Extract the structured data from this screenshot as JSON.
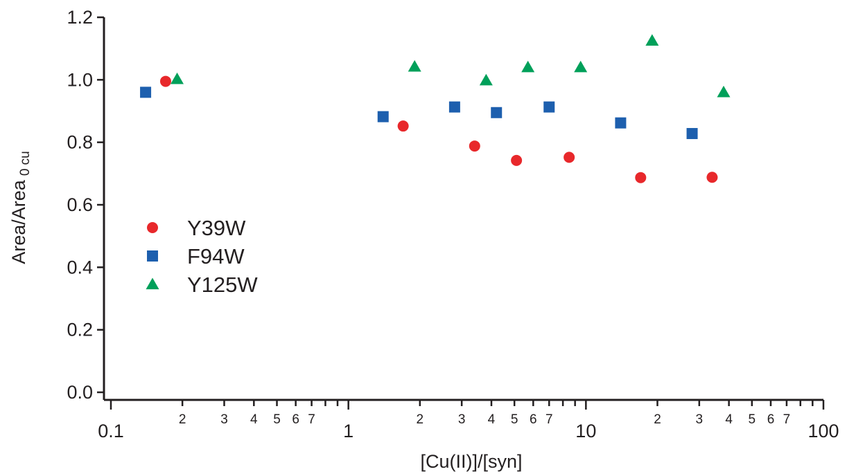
{
  "chart_data": {
    "type": "scatter",
    "title": "",
    "xlabel": "[Cu(II)]/[syn]",
    "ylabel_main": "Area/Area",
    "ylabel_sub": "0 cu",
    "xscale": "log",
    "xlim": [
      0.1,
      100
    ],
    "ylim": [
      0.0,
      1.2
    ],
    "y_ticks": [
      "0.0",
      "0.2",
      "0.4",
      "0.6",
      "0.8",
      "1.0",
      "1.2"
    ],
    "x_major_ticks": [
      "0.1",
      "1",
      "10",
      "100"
    ],
    "x_minor_tick_labels": [
      "2",
      "3",
      "4",
      "5",
      "6",
      "7"
    ],
    "grid": false,
    "legend_position": "left-middle",
    "series": [
      {
        "name": "Y39W",
        "marker": "circle",
        "color": "#e8282b",
        "x": [
          0.17,
          1.7,
          3.4,
          5.1,
          8.5,
          17,
          34
        ],
        "y": [
          0.995,
          0.852,
          0.788,
          0.742,
          0.752,
          0.687,
          0.688
        ]
      },
      {
        "name": "F94W",
        "marker": "square",
        "color": "#1d5fae",
        "x": [
          0.14,
          1.4,
          2.8,
          4.2,
          7,
          14,
          28
        ],
        "y": [
          0.96,
          0.882,
          0.913,
          0.895,
          0.913,
          0.862,
          0.828
        ]
      },
      {
        "name": "Y125W",
        "marker": "triangle",
        "color": "#00a05a",
        "x": [
          0.19,
          1.9,
          3.8,
          5.7,
          9.5,
          19,
          38
        ],
        "y": [
          1.002,
          1.042,
          0.998,
          1.04,
          1.04,
          1.125,
          0.96
        ]
      }
    ]
  }
}
